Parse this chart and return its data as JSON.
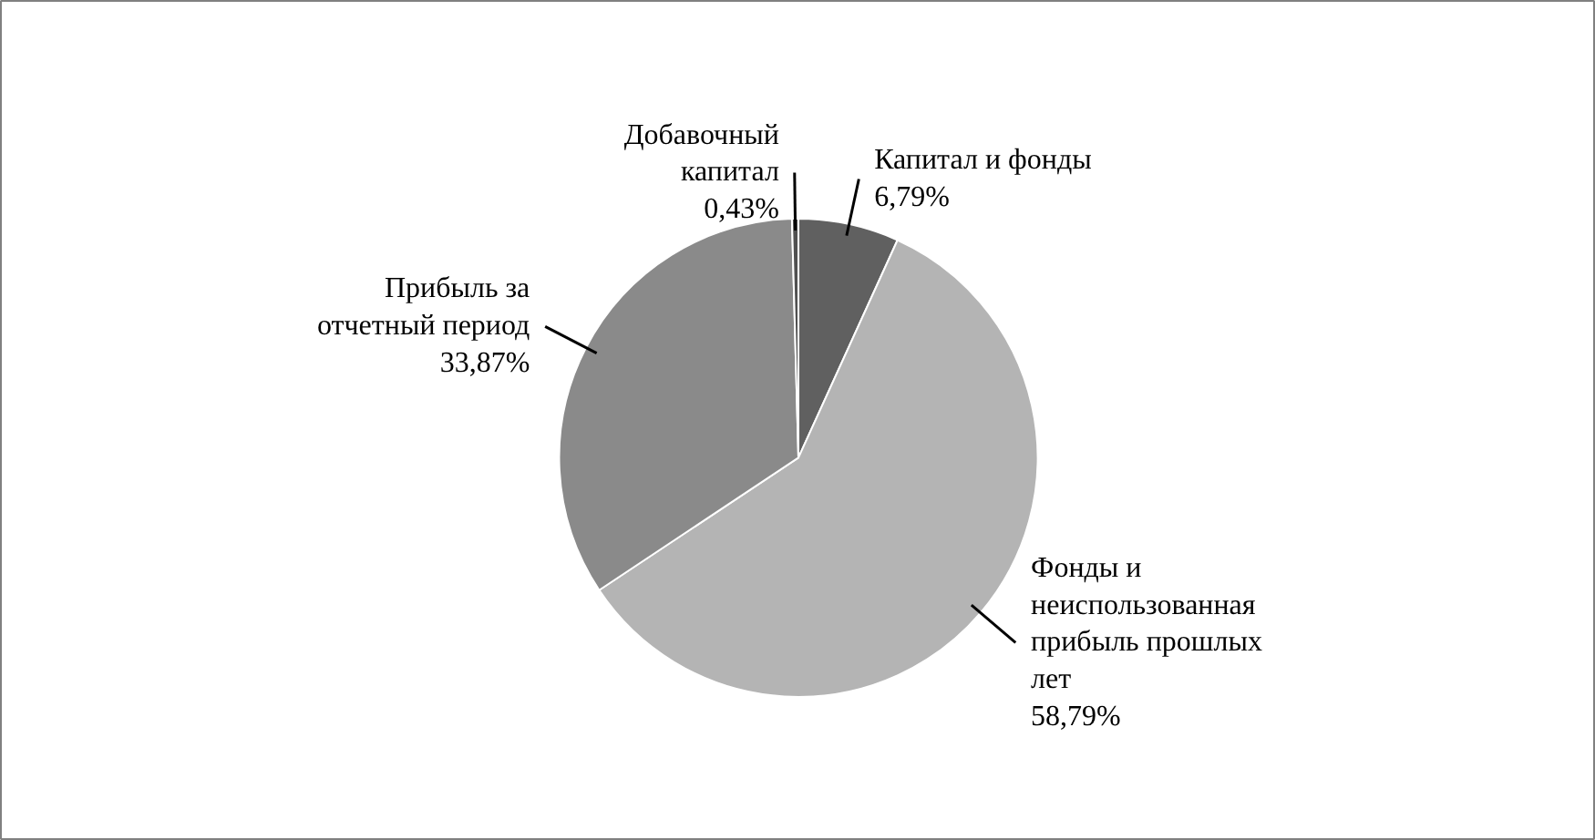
{
  "chart_data": {
    "type": "pie",
    "categories": [
      "Капитал и фонды",
      "Фонды и неиспользованная прибыль прошлых лет",
      "Прибыль за отчетный период",
      "Добавочный капитал"
    ],
    "values": [
      6.79,
      58.79,
      33.87,
      0.43
    ],
    "value_labels": [
      "6,79%",
      "58,79%",
      "33,87%",
      "0,43%"
    ],
    "colors": [
      "#606060",
      "#b4b4b4",
      "#8a8a8a",
      "#505050"
    ]
  }
}
